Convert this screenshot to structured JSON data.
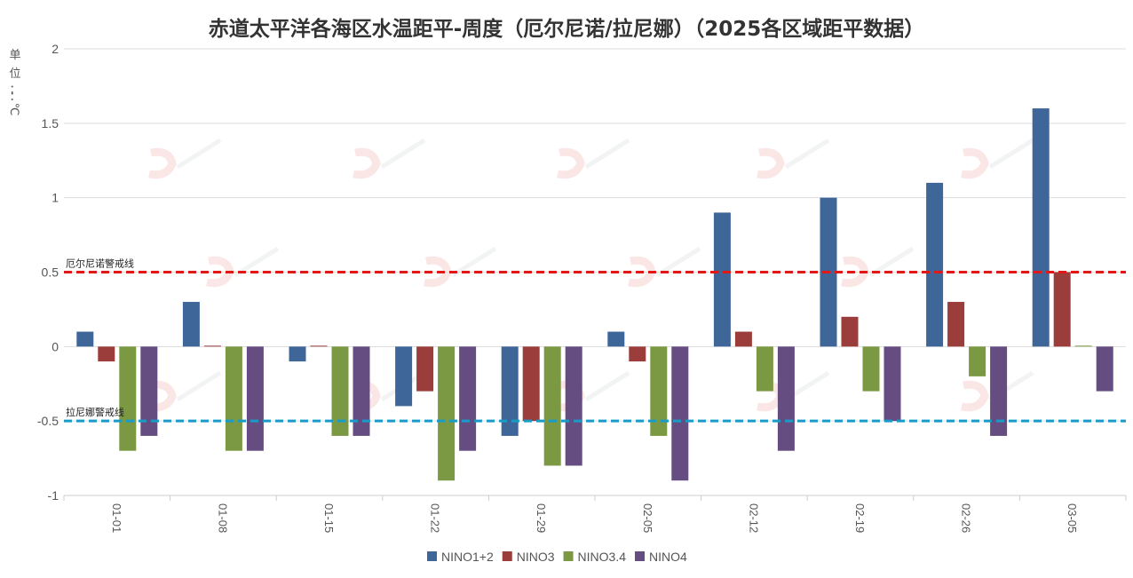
{
  "chart_data": {
    "type": "bar",
    "title": "赤道太平洋各海区水温距平-周度（厄尔尼诺/拉尼娜）（2025各区域距平数据）",
    "ylabel": "单位：：℃",
    "ylim": [
      -1,
      2
    ],
    "yticks": [
      -1,
      -0.5,
      0,
      0.5,
      1,
      1.5,
      2
    ],
    "ytick_labels": [
      "-1",
      "-0.5",
      "0",
      "0.5",
      "1",
      "1.5",
      "2"
    ],
    "grid": true,
    "legend_position": "bottom-center",
    "categories": [
      "01-01",
      "01-08",
      "01-15",
      "01-22",
      "01-29",
      "02-05",
      "02-12",
      "02-19",
      "02-26",
      "03-05"
    ],
    "series": [
      {
        "name": "NINO1+2",
        "color": "#3f6699",
        "values": [
          0.1,
          0.3,
          -0.1,
          -0.4,
          -0.6,
          0.1,
          0.9,
          1.0,
          1.1,
          1.6
        ]
      },
      {
        "name": "NINO3",
        "color": "#9b3d3a",
        "values": [
          -0.1,
          0.0,
          0.0,
          -0.3,
          -0.5,
          -0.1,
          0.1,
          0.2,
          0.3,
          0.5
        ]
      },
      {
        "name": "NINO3.4",
        "color": "#7b9843",
        "values": [
          -0.7,
          -0.7,
          -0.6,
          -0.9,
          -0.8,
          -0.6,
          -0.3,
          -0.3,
          -0.2,
          0.0
        ]
      },
      {
        "name": "NINO4",
        "color": "#654d81",
        "values": [
          -0.6,
          -0.7,
          -0.6,
          -0.7,
          -0.8,
          -0.9,
          -0.7,
          -0.5,
          -0.6,
          -0.3
        ]
      }
    ],
    "reference_lines": [
      {
        "label": "厄尔尼诺警戒线",
        "value": 0.5,
        "color": "#e01818"
      },
      {
        "label": "拉尼娜警戒线",
        "value": -0.5,
        "color": "#1a9bc7"
      }
    ]
  }
}
